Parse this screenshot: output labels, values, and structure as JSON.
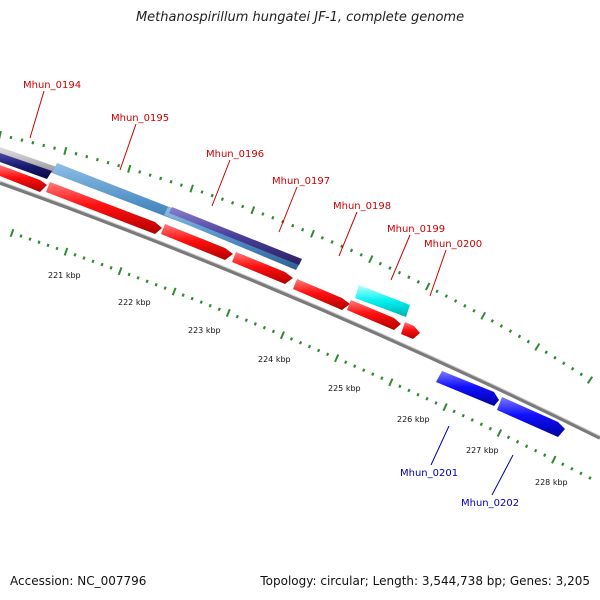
{
  "title": "Methanospirillum hungatei JF-1, complete genome",
  "footer": {
    "accession": "Accession: NC_007796",
    "topology": "Topology: circular; Length: 3,544,738 bp; Genes: 3,205"
  },
  "colors": {
    "forward_cds": "#ff0000",
    "reverse_cds": "#0000ee",
    "label_forward": "#cc0000",
    "label_reverse": "#0000bb",
    "backbone": "#888888",
    "tick": "#2e8b2e"
  },
  "kbp_labels": [
    "221 kbp",
    "222 kbp",
    "223 kbp",
    "224 kbp",
    "225 kbp",
    "226 kbp",
    "227 kbp",
    "228 kbp"
  ],
  "genes": [
    {
      "name": "Mhun_0194",
      "strand": "forward"
    },
    {
      "name": "Mhun_0195",
      "strand": "forward"
    },
    {
      "name": "Mhun_0196",
      "strand": "forward"
    },
    {
      "name": "Mhun_0197",
      "strand": "forward"
    },
    {
      "name": "Mhun_0198",
      "strand": "forward"
    },
    {
      "name": "Mhun_0199",
      "strand": "forward"
    },
    {
      "name": "Mhun_0200",
      "strand": "forward"
    },
    {
      "name": "Mhun_0201",
      "strand": "reverse"
    },
    {
      "name": "Mhun_0202",
      "strand": "reverse"
    }
  ]
}
